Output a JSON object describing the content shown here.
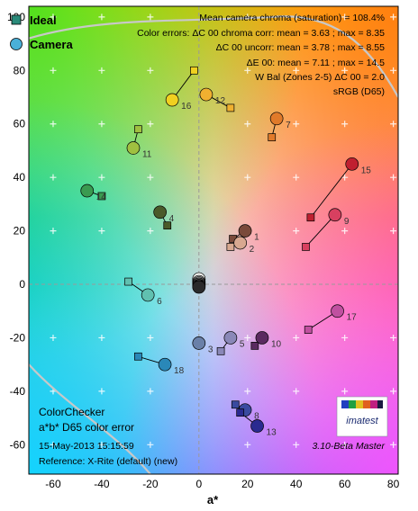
{
  "chart_data": {
    "type": "scatter",
    "xlabel": "a*",
    "ylabel": "",
    "xlim": [
      -70,
      82
    ],
    "ylim": [
      -71,
      104
    ],
    "xticks": [
      -60,
      -40,
      -20,
      0,
      20,
      40,
      60,
      80
    ],
    "yticks": [
      -60,
      -40,
      -20,
      0,
      20,
      40,
      60,
      80,
      100
    ],
    "legend": [
      {
        "name": "Ideal",
        "marker": "square",
        "color": "#2a8a7a"
      },
      {
        "name": "Camera",
        "marker": "circle",
        "color": "#4ab0d8"
      }
    ],
    "stats": [
      "Mean camera chroma (saturation) = 108.4%",
      "Color errors: ΔC 00 chroma corr:  mean = 3.63 ;  max = 8.35",
      "ΔC 00 uncorr:  mean = 3.78 ;  max = 8.55",
      "ΔE 00:  mean = 7.11 ;  max = 14.5",
      "W Bal (Zones 2-5) ΔC 00 = 2.0",
      "sRGB (D65)"
    ],
    "notes": {
      "title": "ColorChecker",
      "subtitle": "a*b* D65 color error",
      "date": "15-May-2013 15:15:59",
      "reference": "Reference: X-Rite (default) (new)",
      "version": "3.10-Beta  Master",
      "logo": "imatest"
    },
    "patches": [
      {
        "id": "1",
        "ideal": [
          14,
          17
        ],
        "camera": [
          19,
          20
        ],
        "color": "#7a4a3a"
      },
      {
        "id": "2",
        "ideal": [
          13,
          14
        ],
        "camera": [
          17,
          15.5
        ],
        "color": "#d8a890"
      },
      {
        "id": "3",
        "ideal": [
          -0.5,
          -22
        ],
        "camera": [
          0,
          -22
        ],
        "color": "#6a80a8"
      },
      {
        "id": "4",
        "ideal": [
          -13,
          22
        ],
        "camera": [
          -16,
          27
        ],
        "color": "#4a5a2a"
      },
      {
        "id": "5",
        "ideal": [
          9,
          -25
        ],
        "camera": [
          13,
          -20
        ],
        "color": "#8a88b8"
      },
      {
        "id": "6",
        "ideal": [
          -29,
          1
        ],
        "camera": [
          -21,
          -4
        ],
        "color": "#60c0b0"
      },
      {
        "id": "7",
        "ideal": [
          30,
          55
        ],
        "camera": [
          32,
          62
        ],
        "color": "#e07a2a"
      },
      {
        "id": "8",
        "ideal": [
          15,
          -45
        ],
        "camera": [
          19,
          -47
        ],
        "color": "#3a4aa0"
      },
      {
        "id": "9",
        "ideal": [
          44,
          14
        ],
        "camera": [
          56,
          26
        ],
        "color": "#d84060"
      },
      {
        "id": "10",
        "ideal": [
          23,
          -23
        ],
        "camera": [
          26,
          -20
        ],
        "color": "#5a2a60"
      },
      {
        "id": "11",
        "ideal": [
          -25,
          58
        ],
        "camera": [
          -27,
          51
        ],
        "color": "#a0c040"
      },
      {
        "id": "12",
        "ideal": [
          13,
          66
        ],
        "camera": [
          3,
          71
        ],
        "color": "#f0b030"
      },
      {
        "id": "13",
        "ideal": [
          17,
          -48
        ],
        "camera": [
          24,
          -53
        ],
        "color": "#2a2a90"
      },
      {
        "id": "14",
        "ideal": [
          -40,
          33
        ],
        "camera": [
          -46,
          35
        ],
        "color": "#3a9a50"
      },
      {
        "id": "15",
        "ideal": [
          46,
          25
        ],
        "camera": [
          63,
          45
        ],
        "color": "#c02030"
      },
      {
        "id": "16",
        "ideal": [
          -2,
          80
        ],
        "camera": [
          -11,
          69
        ],
        "color": "#f0d020"
      },
      {
        "id": "17",
        "ideal": [
          45,
          -17
        ],
        "camera": [
          57,
          -10
        ],
        "color": "#c050a0"
      },
      {
        "id": "18",
        "ideal": [
          -25,
          -27
        ],
        "camera": [
          -14,
          -30
        ],
        "color": "#2a88b8"
      },
      {
        "id": "19",
        "ideal": [
          0,
          1
        ],
        "camera": [
          0,
          2
        ],
        "color": "#f8f8f4"
      },
      {
        "id": "20",
        "ideal": [
          0,
          0
        ],
        "camera": [
          0,
          1
        ],
        "color": "#c8c8c8"
      },
      {
        "id": "21",
        "ideal": [
          0,
          0
        ],
        "camera": [
          0,
          0.5
        ],
        "color": "#a0a0a0"
      },
      {
        "id": "22",
        "ideal": [
          0,
          0
        ],
        "camera": [
          0,
          0
        ],
        "color": "#7a7a7a"
      },
      {
        "id": "23",
        "ideal": [
          0,
          0
        ],
        "camera": [
          0,
          -0.5
        ],
        "color": "#505050"
      },
      {
        "id": "24",
        "ideal": [
          0,
          0
        ],
        "camera": [
          0,
          -1
        ],
        "color": "#2a2a2a"
      }
    ]
  }
}
